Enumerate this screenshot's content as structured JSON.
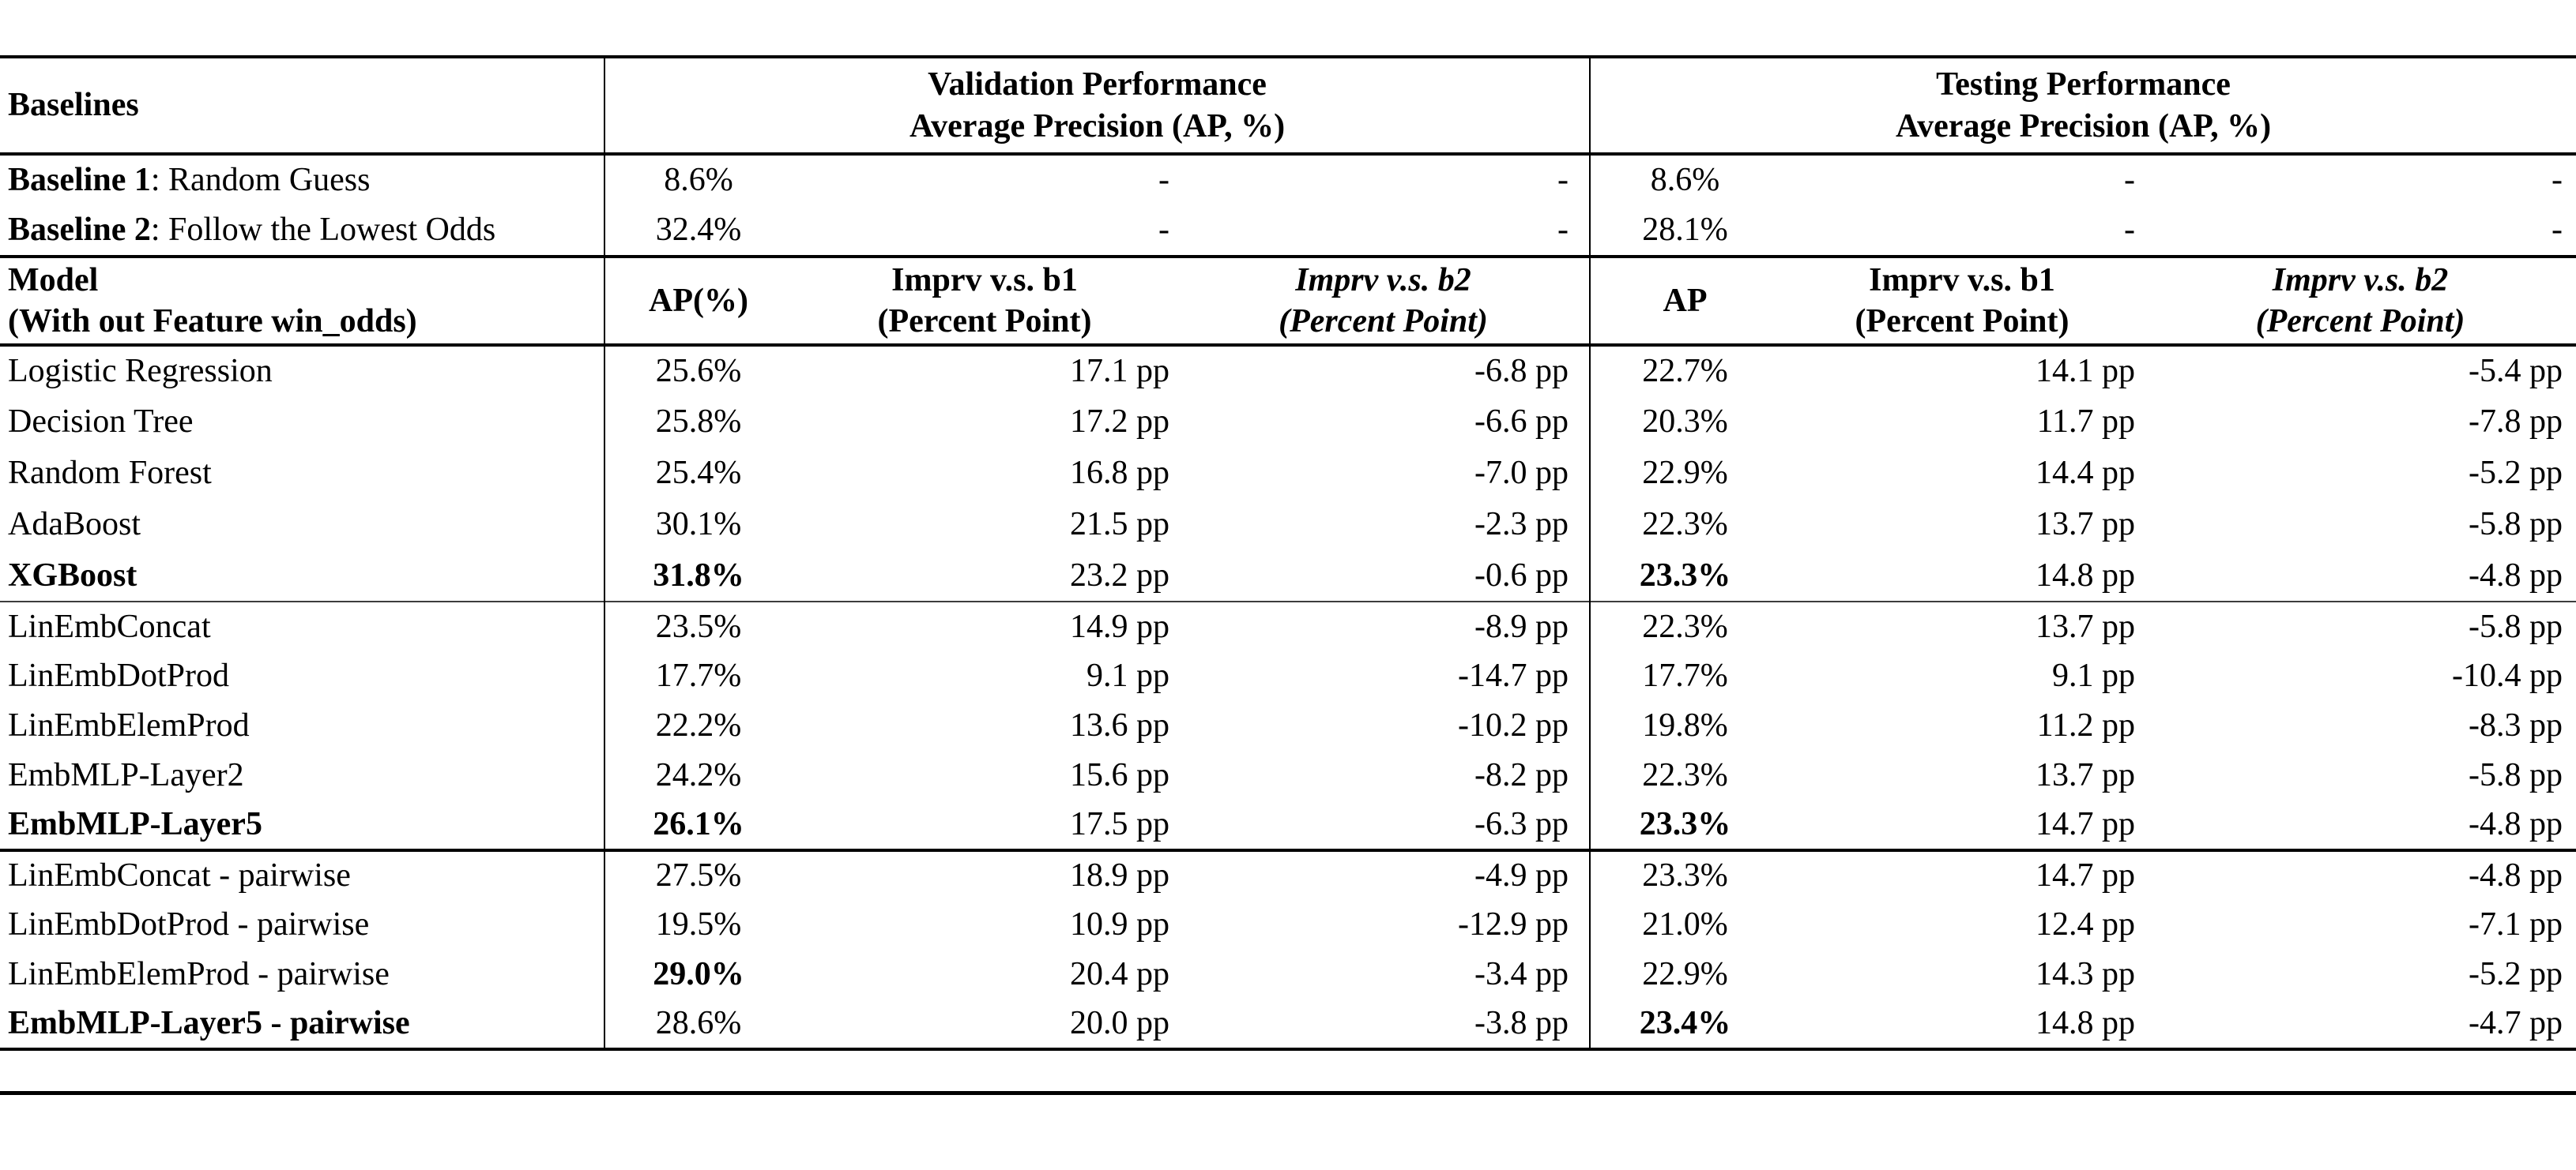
{
  "table": {
    "header": {
      "baselines_label": "Baselines",
      "validation_title_line1": "Validation Performance",
      "validation_title_line2": "Average Precision (AP, %)",
      "testing_title_line1": "Testing Performance",
      "testing_title_line2": "Average Precision (AP, %)"
    },
    "baseline_rows": [
      {
        "name_bold": "Baseline 1",
        "name_rest": ": Random Guess",
        "val_ap": "8.6%",
        "val_b1": "-",
        "val_b2": "-",
        "test_ap": "8.6%",
        "test_b1": "-",
        "test_b2": "-"
      },
      {
        "name_bold": "Baseline 2",
        "name_rest": ": Follow the Lowest Odds",
        "val_ap": "32.4%",
        "val_b1": "-",
        "val_b2": "-",
        "test_ap": "28.1%",
        "test_b1": "-",
        "test_b2": "-"
      }
    ],
    "model_header": {
      "line1": "Model",
      "line2": "(With out Feature win_odds)",
      "val_ap": "AP(%)",
      "b1_line1": "Imprv v.s. b1",
      "b1_line2": "(Percent Point)",
      "b2_line1": "Imprv v.s. b2",
      "b2_line2": "(Percent Point)",
      "test_ap": "AP"
    },
    "model_rows": [
      {
        "group": 1,
        "name": "Logistic Regression",
        "name_bold": false,
        "val_ap": "25.6%",
        "val_ap_bold": false,
        "val_b1": "17.1 pp",
        "val_b2": "-6.8 pp",
        "test_ap": "22.7%",
        "test_ap_bold": false,
        "test_b1": "14.1 pp",
        "test_b2": "-5.4 pp"
      },
      {
        "group": 1,
        "name": "Decision Tree",
        "name_bold": false,
        "val_ap": "25.8%",
        "val_ap_bold": false,
        "val_b1": "17.2 pp",
        "val_b2": "-6.6 pp",
        "test_ap": "20.3%",
        "test_ap_bold": false,
        "test_b1": "11.7 pp",
        "test_b2": "-7.8 pp"
      },
      {
        "group": 1,
        "name": "Random Forest",
        "name_bold": false,
        "val_ap": "25.4%",
        "val_ap_bold": false,
        "val_b1": "16.8 pp",
        "val_b2": "-7.0 pp",
        "test_ap": "22.9%",
        "test_ap_bold": false,
        "test_b1": "14.4 pp",
        "test_b2": "-5.2 pp"
      },
      {
        "group": 1,
        "name": "AdaBoost",
        "name_bold": false,
        "val_ap": "30.1%",
        "val_ap_bold": false,
        "val_b1": "21.5 pp",
        "val_b2": "-2.3 pp",
        "test_ap": "22.3%",
        "test_ap_bold": false,
        "test_b1": "13.7 pp",
        "test_b2": "-5.8 pp"
      },
      {
        "group": 1,
        "name": "XGBoost",
        "name_bold": true,
        "val_ap": "31.8%",
        "val_ap_bold": true,
        "val_b1": "23.2 pp",
        "val_b2": "-0.6 pp",
        "test_ap": "23.3%",
        "test_ap_bold": true,
        "test_b1": "14.8 pp",
        "test_b2": "-4.8 pp"
      },
      {
        "group": 2,
        "name": "LinEmbConcat",
        "name_bold": false,
        "val_ap": "23.5%",
        "val_ap_bold": false,
        "val_b1": "14.9 pp",
        "val_b2": "-8.9 pp",
        "test_ap": "22.3%",
        "test_ap_bold": false,
        "test_b1": "13.7 pp",
        "test_b2": "-5.8 pp"
      },
      {
        "group": 2,
        "name": "LinEmbDotProd",
        "name_bold": false,
        "val_ap": "17.7%",
        "val_ap_bold": false,
        "val_b1": "9.1 pp",
        "val_b2": "-14.7 pp",
        "test_ap": "17.7%",
        "test_ap_bold": false,
        "test_b1": "9.1 pp",
        "test_b2": "-10.4 pp"
      },
      {
        "group": 2,
        "name": "LinEmbElemProd",
        "name_bold": false,
        "val_ap": "22.2%",
        "val_ap_bold": false,
        "val_b1": "13.6 pp",
        "val_b2": "-10.2 pp",
        "test_ap": "19.8%",
        "test_ap_bold": false,
        "test_b1": "11.2 pp",
        "test_b2": "-8.3 pp"
      },
      {
        "group": 2,
        "name": "EmbMLP-Layer2",
        "name_bold": false,
        "val_ap": "24.2%",
        "val_ap_bold": false,
        "val_b1": "15.6 pp",
        "val_b2": "-8.2 pp",
        "test_ap": "22.3%",
        "test_ap_bold": false,
        "test_b1": "13.7 pp",
        "test_b2": "-5.8 pp"
      },
      {
        "group": 2,
        "name": "EmbMLP-Layer5",
        "name_bold": true,
        "val_ap": "26.1%",
        "val_ap_bold": true,
        "val_b1": "17.5 pp",
        "val_b2": "-6.3 pp",
        "test_ap": "23.3%",
        "test_ap_bold": true,
        "test_b1": "14.7 pp",
        "test_b2": "-4.8 pp"
      },
      {
        "group": 3,
        "name": "LinEmbConcat - pairwise",
        "name_bold": false,
        "val_ap": "27.5%",
        "val_ap_bold": false,
        "val_b1": "18.9 pp",
        "val_b2": "-4.9 pp",
        "test_ap": "23.3%",
        "test_ap_bold": false,
        "test_b1": "14.7 pp",
        "test_b2": "-4.8 pp"
      },
      {
        "group": 3,
        "name": "LinEmbDotProd - pairwise",
        "name_bold": false,
        "val_ap": "19.5%",
        "val_ap_bold": false,
        "val_b1": "10.9 pp",
        "val_b2": "-12.9 pp",
        "test_ap": "21.0%",
        "test_ap_bold": false,
        "test_b1": "12.4 pp",
        "test_b2": "-7.1 pp"
      },
      {
        "group": 3,
        "name": "LinEmbElemProd - pairwise",
        "name_bold": false,
        "val_ap": "29.0%",
        "val_ap_bold": true,
        "val_b1": "20.4 pp",
        "val_b2": "-3.4 pp",
        "test_ap": "22.9%",
        "test_ap_bold": false,
        "test_b1": "14.3 pp",
        "test_b2": "-5.2 pp"
      },
      {
        "group": 3,
        "name": "EmbMLP-Layer5 - pairwise",
        "name_bold": true,
        "val_ap": "28.6%",
        "val_ap_bold": false,
        "val_b1": "20.0 pp",
        "val_b2": "-3.8 pp",
        "test_ap": "23.4%",
        "test_ap_bold": true,
        "test_b1": "14.8 pp",
        "test_b2": "-4.7 pp"
      }
    ]
  }
}
